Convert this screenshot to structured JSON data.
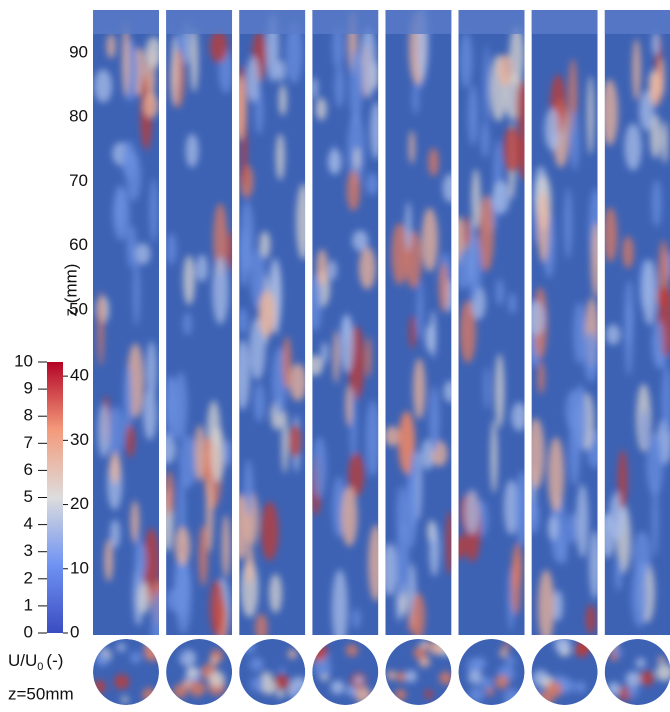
{
  "z_axis": {
    "label": "z (mm)",
    "ticks": [
      50,
      60,
      70,
      80,
      90
    ],
    "lim": [
      0,
      97
    ]
  },
  "colorbar": {
    "left_ticks": [
      0,
      1,
      2,
      3,
      4,
      5,
      6,
      7,
      8,
      9,
      10
    ],
    "left_lim": [
      0,
      10
    ],
    "right_ticks": [
      0,
      10,
      20,
      30,
      40
    ],
    "right_lim": [
      0,
      42.2
    ],
    "label": {
      "main": "U/U",
      "sub": "0",
      "unit": "(-)"
    }
  },
  "section_label": "z=50mm"
}
